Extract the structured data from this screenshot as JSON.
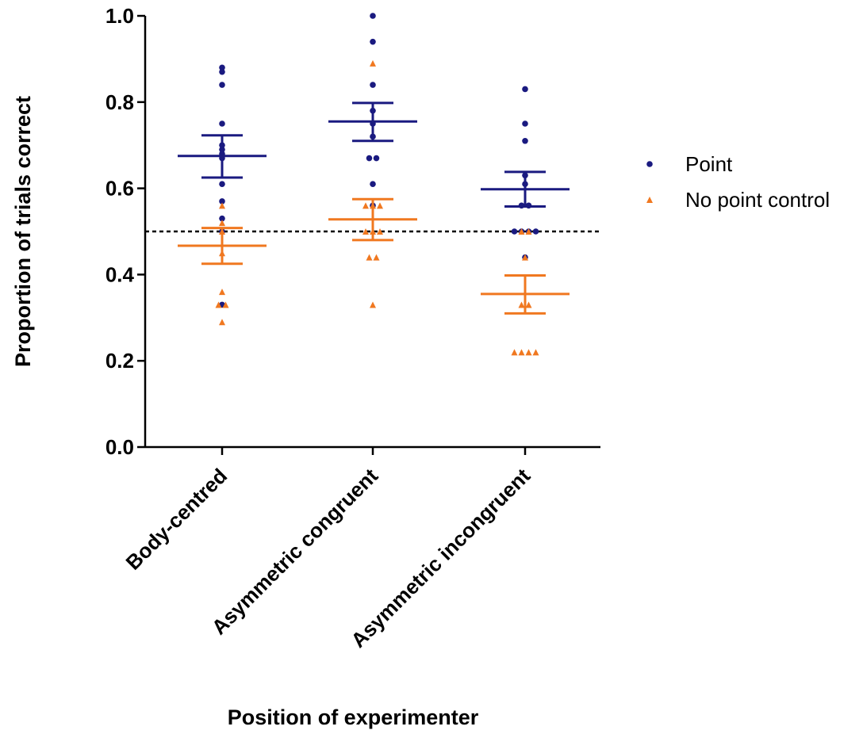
{
  "chart_data": {
    "type": "scatter",
    "subtype": "dot plot with mean and SEM bars",
    "xlabel": "Position of experimenter",
    "ylabel": "Proportion of trials correct",
    "categories": [
      "Body-centred",
      "Asymmetric congruent",
      "Asymmetric incongruent"
    ],
    "ylim": [
      0,
      1
    ],
    "yticks": [
      "0.0",
      "0.2",
      "0.4",
      "0.6",
      "0.8",
      "1.0"
    ],
    "reference_line": {
      "y": 0.5,
      "style": "dashed"
    },
    "grid": false,
    "legend_position": "right",
    "series": [
      {
        "name": "Point",
        "marker": "circle",
        "color": "#1a1a80",
        "points": [
          [
            0.88,
            0.87,
            0.84,
            0.75,
            0.7,
            0.69,
            0.68,
            0.67,
            0.61,
            0.57,
            0.53,
            0.5,
            0.33
          ],
          [
            1.0,
            0.94,
            0.84,
            0.78,
            0.75,
            0.72,
            0.67,
            0.67,
            0.61,
            0.56
          ],
          [
            0.83,
            0.75,
            0.71,
            0.63,
            0.61,
            0.56,
            0.56,
            0.5,
            0.5,
            0.5,
            0.5,
            0.44
          ]
        ],
        "mean": [
          0.675,
          0.755,
          0.598
        ],
        "sem_low": [
          0.625,
          0.71,
          0.558
        ],
        "sem_high": [
          0.723,
          0.798,
          0.638
        ]
      },
      {
        "name": "No point control",
        "marker": "triangle",
        "color": "#f07820",
        "points": [
          [
            0.56,
            0.52,
            0.5,
            0.45,
            0.36,
            0.33,
            0.33,
            0.29
          ],
          [
            0.89,
            0.56,
            0.56,
            0.56,
            0.5,
            0.5,
            0.5,
            0.44,
            0.44,
            0.33
          ],
          [
            0.5,
            0.5,
            0.44,
            0.33,
            0.33,
            0.22,
            0.22,
            0.22,
            0.22
          ]
        ],
        "mean": [
          0.467,
          0.528,
          0.355
        ],
        "sem_low": [
          0.425,
          0.48,
          0.31
        ],
        "sem_high": [
          0.508,
          0.575,
          0.398
        ]
      }
    ]
  }
}
